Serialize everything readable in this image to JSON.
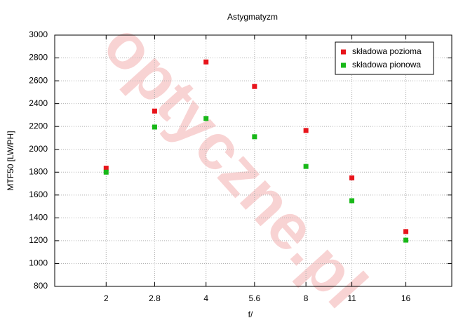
{
  "chart_data": {
    "type": "scatter",
    "title": "Astygmatyzm",
    "xlabel": "f/",
    "ylabel": "MTF50 [LW/PH]",
    "watermark": "optyczne.pl",
    "x": [
      2,
      2.8,
      4,
      5.6,
      8,
      11,
      16
    ],
    "series": [
      {
        "name": "składowa pozioma",
        "color": "#e8141b",
        "values": [
          1835,
          2335,
          2765,
          2550,
          2165,
          1750,
          1280
        ]
      },
      {
        "name": "składowa pionowa",
        "color": "#18b818",
        "values": [
          1800,
          2195,
          2270,
          2110,
          1850,
          1550,
          1205
        ]
      }
    ],
    "xscale": "log",
    "xlim": [
      1.4,
      22
    ],
    "xticks": [
      2,
      2.8,
      4,
      5.6,
      8,
      11,
      16
    ],
    "ylim": [
      800,
      3000
    ],
    "yticks": [
      800,
      1000,
      1200,
      1400,
      1600,
      1800,
      2000,
      2200,
      2400,
      2600,
      2800,
      3000
    ],
    "grid": true,
    "legend": "upper right"
  }
}
